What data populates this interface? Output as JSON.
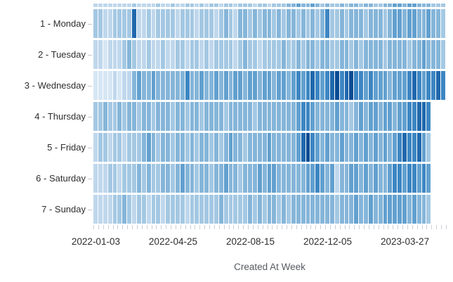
{
  "chart_data": {
    "type": "heatmap",
    "title": "",
    "xlabel": "Created At Week",
    "ylabel": "",
    "legend": "none",
    "grid": false,
    "x_tick_labels": [
      {
        "label": "2022-01-03",
        "col": 0
      },
      {
        "label": "2022-04-25",
        "col": 16
      },
      {
        "label": "2022-08-15",
        "col": 32
      },
      {
        "label": "2022-12-05",
        "col": 48
      },
      {
        "label": "2023-03-27",
        "col": 64
      }
    ],
    "n_cols": 73,
    "palette": [
      "#d6e6f4",
      "#bfd7ec",
      "#a4c8e3",
      "#85b5d9",
      "#62a0cf",
      "#3d86c3",
      "#2068ad",
      "#0b4c94"
    ],
    "palette_note": "levels 1-8 map to light-to-dark blues (relative weekly activity)",
    "top_strip_levels": [
      2,
      2,
      2,
      2,
      2,
      2,
      2,
      2,
      3,
      2,
      2,
      2,
      2,
      3,
      2,
      2,
      3,
      2,
      2,
      3,
      3,
      2,
      3,
      2,
      3,
      3,
      2,
      3,
      3,
      2,
      3,
      3,
      3,
      2,
      3,
      3,
      2,
      3,
      3,
      3,
      4,
      4,
      5,
      4,
      4,
      5,
      4,
      3,
      4,
      3,
      3,
      4,
      3,
      4,
      4,
      3,
      4,
      4,
      3,
      3,
      4,
      4,
      5,
      5,
      4,
      5,
      5,
      4,
      4,
      4,
      3,
      3,
      3
    ],
    "rows": [
      {
        "label": "1 - Monday",
        "levels": [
          3,
          3,
          2,
          2,
          3,
          3,
          3,
          3,
          7,
          2,
          2,
          3,
          2,
          3,
          3,
          3,
          3,
          2,
          3,
          3,
          3,
          2,
          3,
          3,
          3,
          2,
          3,
          4,
          3,
          2,
          4,
          4,
          3,
          4,
          3,
          4,
          4,
          3,
          4,
          3,
          4,
          4,
          3,
          4,
          3,
          4,
          3,
          4,
          6,
          3,
          3,
          4,
          3,
          4,
          4,
          4,
          3,
          4,
          4,
          4,
          3,
          4,
          5,
          5,
          4,
          5,
          5,
          4,
          4,
          5,
          4,
          4,
          3
        ]
      },
      {
        "label": "2 - Tuesday",
        "levels": [
          2,
          2,
          1,
          2,
          2,
          2,
          3,
          4,
          3,
          2,
          2,
          3,
          2,
          2,
          3,
          2,
          2,
          3,
          3,
          2,
          3,
          3,
          2,
          3,
          2,
          3,
          3,
          3,
          3,
          2,
          3,
          4,
          3,
          3,
          2,
          3,
          3,
          3,
          3,
          4,
          3,
          3,
          4,
          3,
          4,
          4,
          3,
          4,
          4,
          3,
          3,
          4,
          4,
          3,
          4,
          3,
          4,
          4,
          4,
          4,
          3,
          4,
          4,
          4,
          4,
          3,
          4,
          4,
          5,
          4,
          4,
          4,
          3
        ]
      },
      {
        "label": "3 - Wednesday",
        "levels": [
          1,
          1,
          1,
          1,
          2,
          1,
          2,
          2,
          4,
          5,
          4,
          4,
          5,
          4,
          4,
          4,
          4,
          4,
          4,
          6,
          4,
          4,
          5,
          4,
          4,
          5,
          4,
          5,
          4,
          5,
          5,
          4,
          5,
          5,
          4,
          5,
          5,
          4,
          5,
          5,
          4,
          5,
          6,
          5,
          6,
          7,
          6,
          5,
          6,
          7,
          8,
          6,
          7,
          8,
          6,
          6,
          5,
          6,
          5,
          5,
          5,
          4,
          5,
          5,
          5,
          6,
          7,
          6,
          5,
          6,
          6,
          7,
          6
        ]
      },
      {
        "label": "4 - Thursday",
        "levels": [
          3,
          3,
          4,
          3,
          3,
          4,
          3,
          4,
          4,
          3,
          4,
          4,
          3,
          4,
          4,
          4,
          3,
          4,
          4,
          3,
          4,
          4,
          3,
          4,
          4,
          4,
          4,
          3,
          4,
          4,
          4,
          4,
          4,
          3,
          4,
          4,
          4,
          4,
          4,
          4,
          4,
          4,
          5,
          6,
          6,
          5,
          4,
          4,
          4,
          4,
          5,
          4,
          4,
          3,
          4,
          5,
          4,
          5,
          5,
          4,
          5,
          5,
          4,
          5,
          5,
          6,
          6,
          7,
          7,
          6
        ]
      },
      {
        "label": "5 - Friday",
        "levels": [
          2,
          3,
          3,
          2,
          3,
          3,
          2,
          3,
          3,
          3,
          4,
          5,
          4,
          3,
          4,
          4,
          3,
          4,
          4,
          3,
          4,
          3,
          4,
          4,
          3,
          4,
          3,
          4,
          5,
          4,
          4,
          3,
          4,
          4,
          4,
          4,
          5,
          4,
          4,
          4,
          4,
          4,
          5,
          7,
          8,
          6,
          5,
          4,
          5,
          4,
          4,
          5,
          4,
          4,
          5,
          4,
          5,
          4,
          5,
          4,
          5,
          4,
          5,
          6,
          7,
          6,
          6,
          7,
          5,
          3
        ]
      },
      {
        "label": "6 - Saturday",
        "levels": [
          2,
          2,
          2,
          3,
          3,
          2,
          3,
          3,
          3,
          4,
          3,
          4,
          3,
          3,
          4,
          4,
          3,
          4,
          5,
          4,
          4,
          3,
          4,
          4,
          3,
          4,
          4,
          5,
          4,
          4,
          3,
          4,
          4,
          4,
          5,
          4,
          5,
          5,
          4,
          4,
          4,
          4,
          4,
          4,
          5,
          5,
          6,
          5,
          4,
          5,
          2,
          4,
          4,
          5,
          5,
          4,
          5,
          4,
          5,
          4,
          4,
          5,
          6,
          6,
          5,
          6,
          6,
          5,
          6,
          5
        ]
      },
      {
        "label": "7 - Sunday",
        "levels": [
          2,
          2,
          2,
          2,
          3,
          3,
          4,
          3,
          2,
          3,
          3,
          2,
          3,
          3,
          2,
          3,
          3,
          3,
          3,
          2,
          3,
          3,
          3,
          3,
          3,
          3,
          4,
          3,
          3,
          3,
          3,
          3,
          4,
          3,
          4,
          3,
          4,
          4,
          3,
          4,
          3,
          4,
          4,
          4,
          4,
          4,
          4,
          4,
          4,
          4,
          3,
          4,
          4,
          4,
          5,
          4,
          4,
          5,
          4,
          4,
          5,
          5,
          5,
          5,
          5,
          4,
          5,
          4,
          4,
          3
        ]
      }
    ]
  },
  "colors": {
    "background": "#ffffff",
    "cell_gap": "#ffffff",
    "tick": "#c9ced4",
    "y_label": "#2e2e2e",
    "x_label": "#2e2e2e",
    "axis_title": "#565b61"
  }
}
